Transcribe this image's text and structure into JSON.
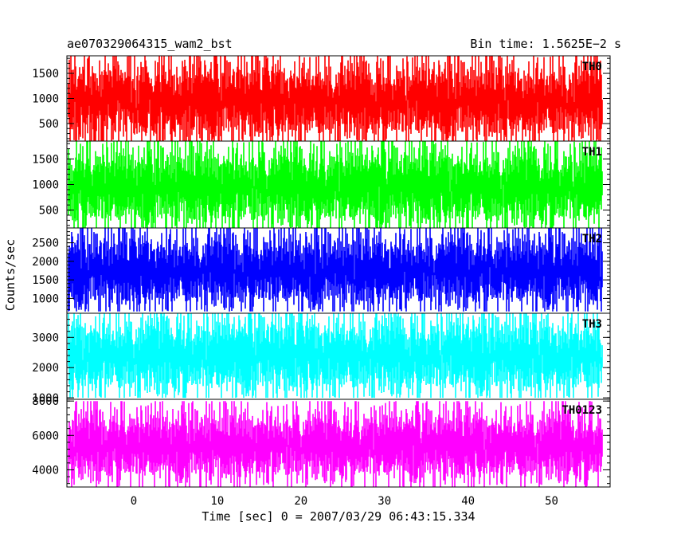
{
  "title_left": "ae070329064315_wam2_bst",
  "title_right": "Bin time: 1.5625E−2 s",
  "ylabel": "Counts/sec",
  "xlabel": "Time [sec] 0 = 2007/03/29 06:43:15.334",
  "chart_data": {
    "type": "line",
    "xlim": [
      -8.0,
      57.0
    ],
    "xticks": [
      0,
      10,
      20,
      30,
      40,
      50
    ],
    "x_start": -7.8,
    "x_end": 56.0,
    "bin_time": 0.015625,
    "panels": [
      {
        "name": "TH0",
        "color": "#ff0000",
        "ylim": [
          150,
          1850
        ],
        "yticks": [
          500,
          1000,
          1500
        ],
        "mean": 950,
        "typical_low": 300,
        "typical_high": 1700,
        "min": 150,
        "max": 1850
      },
      {
        "name": "TH1",
        "color": "#00ff00",
        "ylim": [
          150,
          1850
        ],
        "yticks": [
          500,
          1000,
          1500
        ],
        "mean": 950,
        "typical_low": 300,
        "typical_high": 1700,
        "min": 150,
        "max": 1850
      },
      {
        "name": "TH2",
        "color": "#0000ff",
        "ylim": [
          600,
          2900
        ],
        "yticks": [
          1000,
          1500,
          2000,
          2500
        ],
        "mean": 1750,
        "typical_low": 900,
        "typical_high": 2700,
        "min": 650,
        "max": 2900
      },
      {
        "name": "TH3",
        "color": "#00ffff",
        "ylim": [
          950,
          3800
        ],
        "yticks": [
          1000,
          2000,
          3000
        ],
        "mean": 2400,
        "typical_low": 1200,
        "typical_high": 3500,
        "min": 1000,
        "max": 3800
      },
      {
        "name": "TH0123",
        "color": "#ff00ff",
        "ylim": [
          3000,
          8100
        ],
        "yticks": [
          4000,
          6000,
          8000
        ],
        "mean": 5400,
        "typical_low": 3600,
        "typical_high": 7300,
        "min": 3000,
        "max": 8000
      }
    ]
  }
}
